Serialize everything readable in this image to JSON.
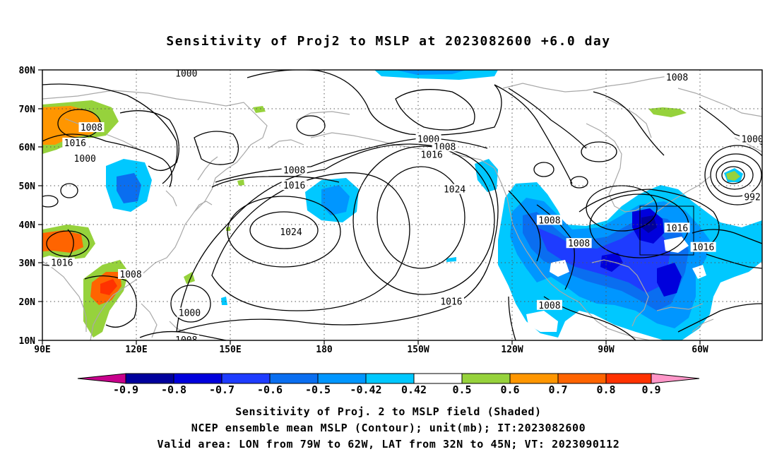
{
  "title": "Sensitivity of Proj2 to MSLP at 2023082600 +6.0 day",
  "map": {
    "lat_labels": [
      "80N",
      "70N",
      "60N",
      "50N",
      "40N",
      "30N",
      "20N",
      "10N"
    ],
    "lon_labels": [
      "90E",
      "120E",
      "150E",
      "180",
      "150W",
      "120W",
      "90W",
      "60W"
    ],
    "domain": {
      "lon_range_deg_east": [
        90,
        310
      ],
      "lat_range_deg": [
        10,
        80
      ]
    },
    "valid_area": {
      "lon": [
        "79W",
        "62W"
      ],
      "lat": [
        "32N",
        "45N"
      ]
    },
    "contour_unit": "mb",
    "contour_labels": [
      {
        "text": "1000",
        "lon": 134,
        "lat": 79
      },
      {
        "text": "1008",
        "lon": 284,
        "lat": 78
      },
      {
        "text": "1008",
        "lon": 105,
        "lat": 65
      },
      {
        "text": "1016",
        "lon": 100,
        "lat": 61
      },
      {
        "text": "1000",
        "lon": 103,
        "lat": 57
      },
      {
        "text": "1000",
        "lon": 208,
        "lat": 62
      },
      {
        "text": "1008",
        "lon": 213,
        "lat": 60
      },
      {
        "text": "1016",
        "lon": 209,
        "lat": 58
      },
      {
        "text": "1000",
        "lon": 307,
        "lat": 62
      },
      {
        "text": "1008",
        "lon": 167,
        "lat": 54
      },
      {
        "text": "1016",
        "lon": 167,
        "lat": 50
      },
      {
        "text": "1024",
        "lon": 216,
        "lat": 49
      },
      {
        "text": "992",
        "lon": 307,
        "lat": 47
      },
      {
        "text": "1024",
        "lon": 166,
        "lat": 38
      },
      {
        "text": "1008",
        "lon": 245,
        "lat": 41
      },
      {
        "text": "1016",
        "lon": 284,
        "lat": 39
      },
      {
        "text": "1008",
        "lon": 254,
        "lat": 35
      },
      {
        "text": "1016",
        "lon": 292,
        "lat": 34
      },
      {
        "text": "1016",
        "lon": 96,
        "lat": 30
      },
      {
        "text": "1008",
        "lon": 117,
        "lat": 27
      },
      {
        "text": "1016",
        "lon": 215,
        "lat": 20
      },
      {
        "text": "1008",
        "lon": 245,
        "lat": 19
      },
      {
        "text": "1000",
        "lon": 135,
        "lat": 17
      },
      {
        "text": "1008",
        "lon": 134,
        "lat": 10
      }
    ]
  },
  "colorbar": {
    "labels": [
      "-0.9",
      "-0.8",
      "-0.7",
      "-0.6",
      "-0.5",
      "-0.42",
      "0.42",
      "0.5",
      "0.6",
      "0.7",
      "0.8",
      "0.9"
    ],
    "colors": [
      "#c8008c",
      "#00009c",
      "#0000dc",
      "#1e3cff",
      "#0a6ef0",
      "#0096ff",
      "#00c8ff",
      "#ffffff",
      "#96d23c",
      "#ff9600",
      "#ff6400",
      "#ff3200",
      "#ff0000",
      "#ff96c8"
    ]
  },
  "captions": {
    "line1": "Sensitivity of Proj. 2 to MSLP field (Shaded)",
    "line2": "NCEP ensemble mean MSLP (Contour); unit(mb); IT:2023082600",
    "line3": "Valid area: LON from 79W to 62W, LAT from 32N to 45N; VT: 2023090112"
  }
}
